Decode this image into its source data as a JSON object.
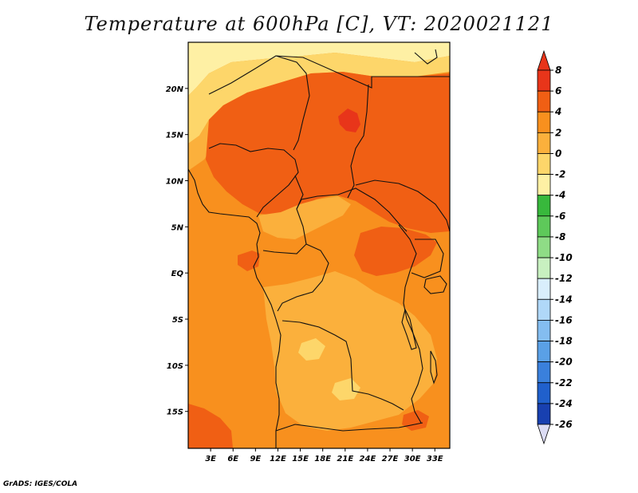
{
  "title": "Temperature at 600hPa [C], VT: 2020021121",
  "credit": "GrADS: IGES/COLA",
  "map": {
    "lat_range": [
      -19,
      25
    ],
    "lon_range": [
      0,
      35
    ],
    "lat_ticks": [
      {
        "value": 20,
        "label": "20N"
      },
      {
        "value": 15,
        "label": "15N"
      },
      {
        "value": 10,
        "label": "10N"
      },
      {
        "value": 5,
        "label": "5N"
      },
      {
        "value": 0,
        "label": "EQ"
      },
      {
        "value": -5,
        "label": "5S"
      },
      {
        "value": -10,
        "label": "10S"
      },
      {
        "value": -15,
        "label": "15S"
      }
    ],
    "lon_ticks": [
      {
        "value": 3,
        "label": "3E"
      },
      {
        "value": 6,
        "label": "6E"
      },
      {
        "value": 9,
        "label": "9E"
      },
      {
        "value": 12,
        "label": "12E"
      },
      {
        "value": 15,
        "label": "15E"
      },
      {
        "value": 18,
        "label": "18E"
      },
      {
        "value": 21,
        "label": "21E"
      },
      {
        "value": 24,
        "label": "24E"
      },
      {
        "value": 27,
        "label": "27E"
      },
      {
        "value": 30,
        "label": "30E"
      },
      {
        "value": 33,
        "label": "33E"
      }
    ]
  },
  "colorbar": {
    "levels": [
      "8",
      "6",
      "4",
      "2",
      "0",
      "-2",
      "-4",
      "-6",
      "-8",
      "-10",
      "-12",
      "-14",
      "-16",
      "-18",
      "-20",
      "-22",
      "-24",
      "-26"
    ],
    "colors": [
      "#e8351a",
      "#f05f14",
      "#f8901e",
      "#fbb03c",
      "#fdd66a",
      "#fef0a4",
      "#38b83c",
      "#5ec95a",
      "#8fdc86",
      "#c8f0c0",
      "#d9eefc",
      "#b0d8f8",
      "#84bdf0",
      "#5aa0e6",
      "#3a80dc",
      "#2060cc",
      "#1840b0",
      "#0c1a6e"
    ]
  },
  "field": {
    "base_color": "#f8901e",
    "colors": {
      "warm": "#f05f14",
      "hot": "#e8351a",
      "mild": "#fbb03c",
      "cool": "#fdd66a",
      "cold": "#fef0a4"
    }
  }
}
